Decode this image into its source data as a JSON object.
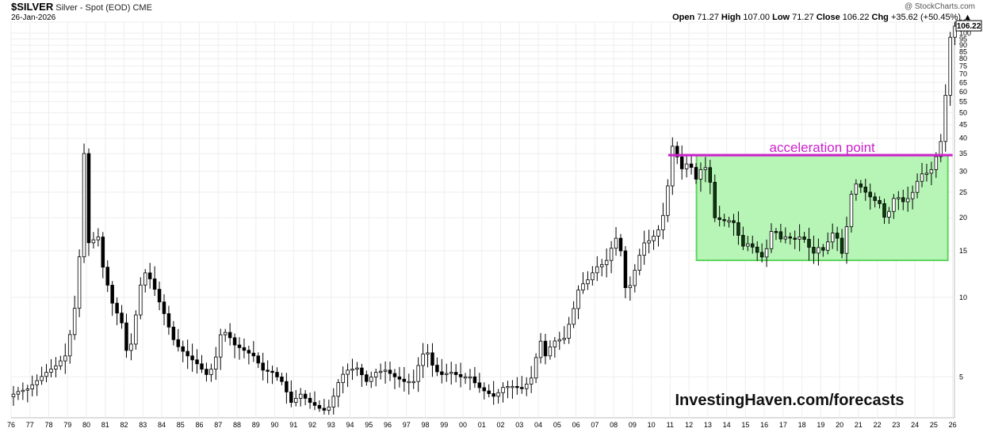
{
  "header": {
    "symbol": "$SILVER",
    "description": "Silver - Spot (EOD)",
    "exchange": "CME",
    "date": "26-Jan-2026",
    "credit": "@ StockCharts.com",
    "open_label": "Open",
    "open": "71.27",
    "high_label": "High",
    "high": "107.00",
    "low_label": "Low",
    "low": "71.27",
    "close_label": "Close",
    "close": "106.22",
    "chg_label": "Chg",
    "chg": "+35.62 (+50.45%)",
    "chg_icon": "triangle-up-icon"
  },
  "colors": {
    "zone_fill": "#b6f5b6",
    "zone_stroke": "#5fd35f",
    "resistance_line": "#cc22cc",
    "annotation_text": "#cc22cc",
    "candle_up": "#ffffff",
    "candle_down": "#000000",
    "candle_down_in_zone": "#0e3a0e",
    "grid": "#eeeeee"
  },
  "chart_data": {
    "type": "candlestick",
    "title": "$SILVER Silver - Spot (EOD) CME",
    "y_scale": "log",
    "ylim": [
      3.5,
      110
    ],
    "y_ticks": [
      5,
      10,
      15,
      20,
      25,
      30,
      35,
      40,
      45,
      50,
      55,
      60,
      65,
      70,
      75,
      80,
      85,
      90,
      95,
      100,
      110
    ],
    "x_ticks": [
      "76",
      "77",
      "78",
      "79",
      "80",
      "81",
      "82",
      "83",
      "84",
      "85",
      "86",
      "87",
      "88",
      "89",
      "90",
      "91",
      "92",
      "93",
      "94",
      "95",
      "96",
      "97",
      "98",
      "99",
      "00",
      "01",
      "02",
      "03",
      "04",
      "05",
      "06",
      "07",
      "08",
      "09",
      "10",
      "11",
      "12",
      "13",
      "14",
      "15",
      "16",
      "17",
      "18",
      "19",
      "20",
      "21",
      "22",
      "23",
      "24",
      "25",
      "26"
    ],
    "x_start_year": 1976,
    "x_end_year": 2026.1,
    "last_price_label": "106.22",
    "annotations": {
      "resistance_label": "acceleration point",
      "resistance_level": 34.5,
      "resistance_from": 2010.9,
      "resistance_to": 2026.0,
      "zone_from": 2012.4,
      "zone_to": 2025.75,
      "zone_low": 13.8,
      "zone_high": 34.5,
      "watermark": "InvestingHaven.com/forecasts"
    },
    "series": [
      {
        "frequency": "quarterly",
        "anchors": [
          [
            1976.0,
            4.2
          ],
          [
            1976.5,
            4.4
          ],
          [
            1977.0,
            4.5
          ],
          [
            1978.0,
            5.2
          ],
          [
            1978.5,
            5.5
          ],
          [
            1979.0,
            6.0
          ],
          [
            1979.3,
            7.5
          ],
          [
            1979.6,
            10.0
          ],
          [
            1979.8,
            16.0
          ],
          [
            1980.0,
            35.0
          ],
          [
            1980.2,
            16.0
          ],
          [
            1980.5,
            16.5
          ],
          [
            1980.8,
            17.0
          ],
          [
            1981.0,
            13.0
          ],
          [
            1981.5,
            9.5
          ],
          [
            1982.0,
            8.0
          ],
          [
            1982.3,
            6.0
          ],
          [
            1982.6,
            7.0
          ],
          [
            1982.9,
            10.5
          ],
          [
            1983.2,
            12.5
          ],
          [
            1983.6,
            11.5
          ],
          [
            1983.9,
            10.0
          ],
          [
            1984.3,
            8.5
          ],
          [
            1984.7,
            7.0
          ],
          [
            1985.0,
            6.5
          ],
          [
            1985.5,
            6.0
          ],
          [
            1986.0,
            5.6
          ],
          [
            1986.5,
            5.1
          ],
          [
            1986.9,
            5.5
          ],
          [
            1987.3,
            7.5
          ],
          [
            1987.6,
            7.3
          ],
          [
            1988.0,
            6.6
          ],
          [
            1988.5,
            6.3
          ],
          [
            1989.0,
            6.0
          ],
          [
            1989.5,
            5.3
          ],
          [
            1990.0,
            5.2
          ],
          [
            1990.5,
            4.8
          ],
          [
            1991.0,
            4.0
          ],
          [
            1991.5,
            4.3
          ],
          [
            1992.0,
            4.0
          ],
          [
            1992.5,
            3.8
          ],
          [
            1992.9,
            3.7
          ],
          [
            1993.3,
            4.3
          ],
          [
            1993.6,
            5.0
          ],
          [
            1994.0,
            5.3
          ],
          [
            1994.5,
            5.4
          ],
          [
            1995.0,
            4.8
          ],
          [
            1995.5,
            5.2
          ],
          [
            1996.0,
            5.3
          ],
          [
            1996.5,
            5.0
          ],
          [
            1997.0,
            4.8
          ],
          [
            1997.5,
            4.8
          ],
          [
            1997.9,
            6.0
          ],
          [
            1998.2,
            6.3
          ],
          [
            1998.6,
            5.3
          ],
          [
            1999.0,
            5.1
          ],
          [
            1999.5,
            5.2
          ],
          [
            2000.0,
            5.0
          ],
          [
            2000.5,
            5.0
          ],
          [
            2000.9,
            4.6
          ],
          [
            2001.3,
            4.4
          ],
          [
            2001.8,
            4.2
          ],
          [
            2002.3,
            4.6
          ],
          [
            2002.8,
            4.6
          ],
          [
            2003.3,
            4.5
          ],
          [
            2003.8,
            5.0
          ],
          [
            2004.2,
            7.0
          ],
          [
            2004.5,
            6.0
          ],
          [
            2004.9,
            6.8
          ],
          [
            2005.5,
            7.0
          ],
          [
            2005.9,
            8.5
          ],
          [
            2006.3,
            11.0
          ],
          [
            2006.7,
            11.5
          ],
          [
            2007.2,
            13.0
          ],
          [
            2007.7,
            13.5
          ],
          [
            2008.1,
            16.0
          ],
          [
            2008.4,
            17.5
          ],
          [
            2008.7,
            11.0
          ],
          [
            2008.9,
            10.5
          ],
          [
            2009.3,
            13.0
          ],
          [
            2009.7,
            16.0
          ],
          [
            2010.1,
            16.5
          ],
          [
            2010.5,
            18.0
          ],
          [
            2010.9,
            22.0
          ],
          [
            2011.2,
            38.0
          ],
          [
            2011.5,
            34.0
          ],
          [
            2011.8,
            30.0
          ],
          [
            2012.1,
            33.0
          ],
          [
            2012.5,
            28.0
          ],
          [
            2012.9,
            32.0
          ],
          [
            2013.2,
            29.0
          ],
          [
            2013.5,
            20.0
          ],
          [
            2013.9,
            19.5
          ],
          [
            2014.3,
            19.5
          ],
          [
            2014.6,
            19.0
          ],
          [
            2014.9,
            15.5
          ],
          [
            2015.3,
            16.0
          ],
          [
            2015.7,
            15.0
          ],
          [
            2015.95,
            14.0
          ],
          [
            2016.3,
            15.5
          ],
          [
            2016.6,
            19.0
          ],
          [
            2016.9,
            16.5
          ],
          [
            2017.3,
            17.0
          ],
          [
            2017.7,
            16.5
          ],
          [
            2017.95,
            17.0
          ],
          [
            2018.3,
            16.5
          ],
          [
            2018.7,
            14.5
          ],
          [
            2018.95,
            15.5
          ],
          [
            2019.3,
            15.0
          ],
          [
            2019.7,
            17.5
          ],
          [
            2019.95,
            17.5
          ],
          [
            2020.2,
            14.0
          ],
          [
            2020.5,
            18.5
          ],
          [
            2020.7,
            24.0
          ],
          [
            2020.95,
            27.0
          ],
          [
            2021.3,
            26.0
          ],
          [
            2021.6,
            24.5
          ],
          [
            2021.9,
            23.5
          ],
          [
            2022.3,
            22.5
          ],
          [
            2022.6,
            19.0
          ],
          [
            2022.9,
            23.5
          ],
          [
            2023.2,
            24.0
          ],
          [
            2023.5,
            23.0
          ],
          [
            2023.9,
            24.0
          ],
          [
            2024.3,
            28.0
          ],
          [
            2024.6,
            30.0
          ],
          [
            2024.9,
            29.0
          ],
          [
            2025.2,
            33.5
          ],
          [
            2025.45,
            36.5
          ],
          [
            2025.65,
            47.0
          ],
          [
            2025.85,
            72.0
          ],
          [
            2026.05,
            106.22
          ]
        ]
      }
    ]
  }
}
